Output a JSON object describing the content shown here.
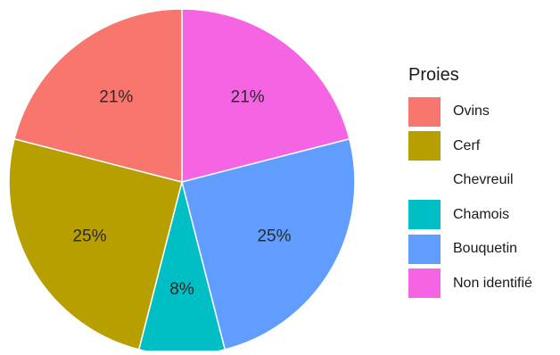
{
  "chart_data": {
    "type": "pie",
    "legend_title": "Proies",
    "legend_position": "right",
    "start": "top",
    "direction": "clockwise",
    "slices": [
      {
        "name": "Non identifié",
        "value": 21,
        "label": "21%",
        "color": "#F564E3"
      },
      {
        "name": "Bouquetin",
        "value": 25,
        "label": "25%",
        "color": "#619CFF"
      },
      {
        "name": "Chamois",
        "value": 8,
        "label": "8%",
        "color": "#00BFC4"
      },
      {
        "name": "Cerf",
        "value": 25,
        "label": "25%",
        "color": "#B79F00"
      },
      {
        "name": "Ovins",
        "value": 21,
        "label": "21%",
        "color": "#F8766D"
      }
    ],
    "legend": [
      {
        "name": "Ovins",
        "color": "#F8766D"
      },
      {
        "name": "Cerf",
        "color": "#B79F00"
      },
      {
        "name": "Chevreuil",
        "color": "#00BA38"
      },
      {
        "name": "Chamois",
        "color": "#00BFC4"
      },
      {
        "name": "Bouquetin",
        "color": "#619CFF"
      },
      {
        "name": "Non identifié",
        "color": "#F564E3"
      }
    ]
  }
}
